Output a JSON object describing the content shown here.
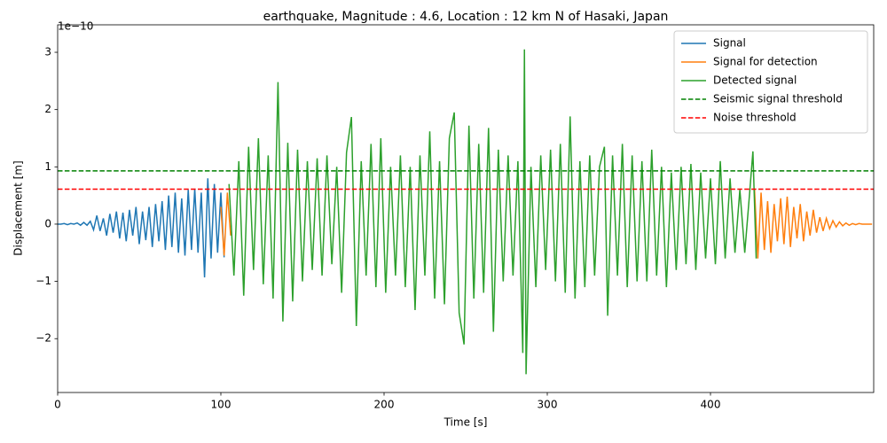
{
  "chart_data": {
    "type": "line",
    "title": "earthquake, Magnitude : 4.6, Location : 12 km N of Hasaki, Japan",
    "x_label": "Time [s]",
    "y_label": "Displacement [m]",
    "y_offset_label": "1e−10",
    "xlim": [
      0,
      500
    ],
    "ylim": [
      -2.94,
      3.48
    ],
    "xticks": [
      0,
      100,
      200,
      300,
      400
    ],
    "yticks": [
      {
        "value": -2,
        "label": "−2"
      },
      {
        "value": -1,
        "label": "−1"
      },
      0,
      1,
      2,
      3
    ],
    "grid": false,
    "legend": "upper right",
    "series": [
      {
        "name": "Signal",
        "color": "#1f77b4",
        "x": [
          0,
          2,
          4,
          6,
          8,
          10,
          12,
          14,
          16,
          18,
          20,
          22,
          24,
          26,
          28,
          30,
          32,
          34,
          36,
          38,
          40,
          42,
          44,
          46,
          48,
          50,
          52,
          54,
          56,
          58,
          60,
          62,
          64,
          66,
          68,
          70,
          72,
          74,
          76,
          78,
          80,
          82,
          84,
          86,
          88,
          90,
          92,
          94,
          96,
          98,
          100,
          102
        ],
        "values": [
          0,
          0,
          0.01,
          -0.01,
          0.01,
          0,
          0.02,
          -0.02,
          0.03,
          -0.02,
          0.05,
          -0.1,
          0.15,
          -0.12,
          0.1,
          -0.2,
          0.18,
          -0.15,
          0.22,
          -0.25,
          0.2,
          -0.3,
          0.25,
          -0.2,
          0.3,
          -0.35,
          0.22,
          -0.28,
          0.3,
          -0.4,
          0.35,
          -0.3,
          0.4,
          -0.45,
          0.5,
          -0.4,
          0.55,
          -0.5,
          0.45,
          -0.55,
          0.6,
          -0.45,
          0.62,
          -0.5,
          0.55,
          -0.93,
          0.8,
          -0.6,
          0.7,
          -0.5,
          0.55,
          -0.58
        ]
      },
      {
        "name": "Signal for detection",
        "color": "#ff7f0e",
        "x": [
          100,
          102,
          104,
          106,
          300,
          427,
          429,
          431,
          433,
          435,
          437,
          439,
          441,
          443,
          445,
          447,
          449,
          451,
          453,
          455,
          457,
          459,
          461,
          463,
          465,
          467,
          469,
          471,
          473,
          475,
          477,
          479,
          481,
          483,
          485,
          487,
          489,
          491,
          493,
          495,
          497,
          499
        ],
        "values": [
          0.3,
          -0.55,
          0.55,
          -0.2,
          null,
          0.6,
          -0.6,
          0.55,
          -0.45,
          0.4,
          -0.5,
          0.35,
          -0.3,
          0.45,
          -0.35,
          0.48,
          -0.4,
          0.3,
          -0.25,
          0.35,
          -0.3,
          0.22,
          -0.2,
          0.25,
          -0.15,
          0.12,
          -0.12,
          0.1,
          -0.08,
          0.06,
          -0.05,
          0.04,
          -0.03,
          0.02,
          -0.02,
          0.01,
          -0.01,
          0.01,
          0,
          0,
          0,
          0
        ]
      },
      {
        "name": "Detected signal",
        "color": "#2ca02c",
        "x": [
          105,
          108,
          111,
          114,
          117,
          120,
          123,
          126,
          129,
          132,
          135,
          138,
          141,
          144,
          147,
          150,
          153,
          156,
          159,
          162,
          165,
          168,
          171,
          174,
          177,
          180,
          183,
          186,
          189,
          192,
          195,
          198,
          201,
          204,
          207,
          210,
          213,
          216,
          219,
          222,
          225,
          228,
          231,
          234,
          237,
          240,
          243,
          246,
          249,
          252,
          255,
          258,
          261,
          264,
          267,
          270,
          273,
          276,
          279,
          282,
          285,
          286,
          287,
          290,
          293,
          296,
          299,
          302,
          305,
          308,
          311,
          314,
          317,
          320,
          323,
          326,
          329,
          332,
          335,
          337,
          340,
          343,
          346,
          349,
          352,
          355,
          358,
          361,
          364,
          367,
          370,
          373,
          376,
          379,
          382,
          385,
          388,
          391,
          394,
          397,
          400,
          403,
          406,
          409,
          412,
          415,
          418,
          421,
          424,
          426,
          428
        ],
        "values": [
          0.7,
          -0.9,
          1.1,
          -1.25,
          1.35,
          -0.8,
          1.5,
          -1.05,
          1.2,
          -1.3,
          2.48,
          -1.7,
          1.42,
          -1.35,
          1.3,
          -1.0,
          1.1,
          -0.8,
          1.15,
          -0.9,
          1.2,
          -0.7,
          1.0,
          -1.2,
          1.25,
          1.87,
          -1.78,
          1.1,
          -0.9,
          1.4,
          -1.1,
          1.5,
          -1.2,
          1.0,
          -0.9,
          1.2,
          -1.1,
          1.0,
          -1.5,
          1.2,
          -0.9,
          1.62,
          -1.3,
          1.1,
          -1.4,
          1.5,
          1.95,
          -1.55,
          -2.1,
          1.72,
          -1.3,
          1.4,
          -1.2,
          1.68,
          -1.88,
          1.3,
          -1.0,
          1.2,
          -0.9,
          1.1,
          -2.25,
          3.05,
          -2.62,
          1.0,
          -1.1,
          1.2,
          -0.8,
          1.3,
          -1.0,
          1.4,
          -1.2,
          1.88,
          -1.3,
          1.1,
          -1.1,
          1.2,
          -0.9,
          1.0,
          1.35,
          -1.6,
          1.2,
          -0.9,
          1.4,
          -1.1,
          1.2,
          -1.0,
          1.1,
          -1.0,
          1.3,
          -0.9,
          1.0,
          -1.1,
          0.9,
          -0.8,
          1.0,
          -0.7,
          1.05,
          -0.8,
          0.9,
          -0.6,
          0.8,
          -0.7,
          1.1,
          -0.6,
          0.8,
          -0.5,
          0.6,
          -0.5,
          0.55,
          1.27,
          -0.6
        ]
      }
    ],
    "thresholds": [
      {
        "name": "Seismic signal threshold",
        "color": "#008000",
        "value": 0.93
      },
      {
        "name": "Noise threshold",
        "color": "#ff0000",
        "value": 0.61
      }
    ]
  }
}
